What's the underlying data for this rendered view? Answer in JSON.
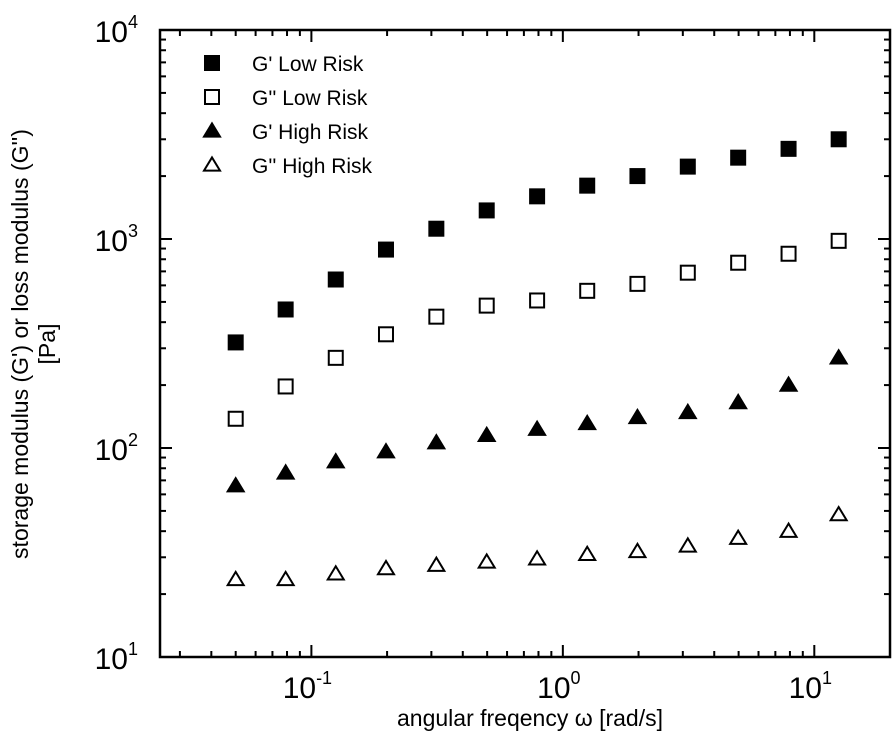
{
  "chart_data": {
    "type": "scatter",
    "x_scale": "log",
    "y_scale": "log",
    "xlabel": "angular freqency ω [rad/s]",
    "ylabel_line1": "storage modulus (G') or loss modulus (G'')",
    "ylabel_line2": "[Pa]",
    "xlim": [
      0.025,
      20
    ],
    "ylim": [
      10,
      10000
    ],
    "x_ticks": [
      {
        "value": 0.1,
        "base": "10",
        "exp": "-1"
      },
      {
        "value": 1,
        "base": "10",
        "exp": "0"
      },
      {
        "value": 10,
        "base": "10",
        "exp": "1"
      }
    ],
    "y_ticks": [
      {
        "value": 10,
        "base": "10",
        "exp": "1"
      },
      {
        "value": 100,
        "base": "10",
        "exp": "2"
      },
      {
        "value": 1000,
        "base": "10",
        "exp": "3"
      },
      {
        "value": 10000,
        "base": "10",
        "exp": "4"
      }
    ],
    "legend_position": "top-left",
    "grid": false,
    "series": [
      {
        "name": "G' Low Risk",
        "marker": "square-filled",
        "x": [
          0.05,
          0.079,
          0.125,
          0.198,
          0.314,
          0.498,
          0.79,
          1.25,
          1.98,
          3.14,
          4.98,
          7.9,
          12.5
        ],
        "y": [
          320,
          460,
          640,
          890,
          1120,
          1370,
          1600,
          1800,
          2000,
          2220,
          2450,
          2700,
          3000
        ]
      },
      {
        "name": "G'' Low Risk",
        "marker": "square-open",
        "x": [
          0.05,
          0.079,
          0.125,
          0.198,
          0.314,
          0.498,
          0.79,
          1.25,
          1.98,
          3.14,
          4.98,
          7.9,
          12.5
        ],
        "y": [
          138,
          197,
          270,
          350,
          425,
          480,
          508,
          565,
          610,
          690,
          770,
          850,
          980
        ]
      },
      {
        "name": "G' High Risk",
        "marker": "triangle-filled",
        "x": [
          0.05,
          0.079,
          0.125,
          0.198,
          0.314,
          0.498,
          0.79,
          1.25,
          1.98,
          3.14,
          4.98,
          7.9,
          12.5
        ],
        "y": [
          66,
          76,
          86,
          96,
          106,
          115,
          123,
          131,
          140,
          148,
          165,
          200,
          270
        ]
      },
      {
        "name": "G'' High Risk",
        "marker": "triangle-open",
        "x": [
          0.05,
          0.079,
          0.125,
          0.198,
          0.314,
          0.498,
          0.79,
          1.25,
          1.98,
          3.14,
          4.98,
          7.9,
          12.5
        ],
        "y": [
          23.5,
          23.5,
          25,
          26.5,
          27.5,
          28.5,
          29.5,
          31,
          32,
          34,
          37,
          40,
          48
        ]
      }
    ]
  }
}
